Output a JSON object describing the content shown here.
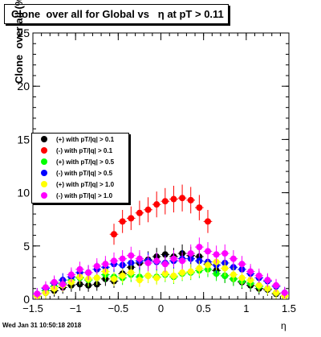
{
  "title": "Clone  over all for Global vs   η at pT > 0.11",
  "footer": "Wed Jan 31 10:50:18 2018",
  "chart_data": {
    "type": "scatter",
    "title": "Clone  over all for Global vs   η at pT > 0.11",
    "xlabel": "η",
    "ylabel": "Clone  over all (%)",
    "xlim": [
      -1.5,
      1.5
    ],
    "ylim": [
      0,
      25
    ],
    "xticks": [
      "−1.5",
      "−1",
      "−0.5",
      "0",
      "0.5",
      "1",
      "1.5"
    ],
    "yticks": [
      "0",
      "5",
      "10",
      "15",
      "20",
      "25"
    ],
    "legend_position": "left",
    "series": [
      {
        "name": "(+) with pT/|q| > 0.1",
        "color": "#000000",
        "points": [
          [
            -1.45,
            0.3
          ],
          [
            -1.35,
            0.6
          ],
          [
            -1.25,
            0.8
          ],
          [
            -1.15,
            1.1
          ],
          [
            -1.05,
            1.3
          ],
          [
            -0.95,
            1.4
          ],
          [
            -0.85,
            1.3
          ],
          [
            -0.75,
            1.4
          ],
          [
            -0.65,
            1.9
          ],
          [
            -0.55,
            1.7
          ],
          [
            -0.45,
            2.4
          ],
          [
            -0.35,
            3.0
          ],
          [
            -0.25,
            3.4
          ],
          [
            -0.15,
            3.7
          ],
          [
            -0.05,
            4.0
          ],
          [
            0.05,
            4.2
          ],
          [
            0.15,
            4.0
          ],
          [
            0.25,
            4.3
          ],
          [
            0.35,
            4.1
          ],
          [
            0.45,
            4.0
          ],
          [
            0.55,
            3.3
          ],
          [
            0.65,
            2.7
          ],
          [
            0.75,
            2.2
          ],
          [
            0.85,
            1.9
          ],
          [
            0.95,
            1.6
          ],
          [
            1.05,
            1.3
          ],
          [
            1.15,
            1.0
          ],
          [
            1.25,
            0.9
          ],
          [
            1.35,
            0.5
          ],
          [
            1.45,
            0.3
          ]
        ]
      },
      {
        "name": "(-) with pT/|q| > 0.1",
        "color": "#ff0000",
        "points": [
          [
            -0.55,
            6.1
          ],
          [
            -0.45,
            7.3
          ],
          [
            -0.35,
            7.6
          ],
          [
            -0.25,
            8.1
          ],
          [
            -0.15,
            8.4
          ],
          [
            -0.05,
            8.9
          ],
          [
            0.05,
            9.2
          ],
          [
            0.15,
            9.4
          ],
          [
            0.25,
            9.5
          ],
          [
            0.35,
            9.3
          ],
          [
            0.45,
            8.6
          ],
          [
            0.55,
            7.3
          ]
        ]
      },
      {
        "name": "(+) with pT/|q| > 0.5",
        "color": "#00ff00",
        "points": [
          [
            -1.45,
            0.3
          ],
          [
            -1.35,
            0.8
          ],
          [
            -1.25,
            1.2
          ],
          [
            -1.15,
            1.5
          ],
          [
            -1.05,
            1.8
          ],
          [
            -0.95,
            2.0
          ],
          [
            -0.85,
            1.8
          ],
          [
            -0.75,
            2.0
          ],
          [
            -0.65,
            2.3
          ],
          [
            -0.55,
            2.1
          ],
          [
            -0.45,
            2.0
          ],
          [
            -0.35,
            2.3
          ],
          [
            -0.25,
            2.1
          ],
          [
            -0.15,
            2.2
          ],
          [
            -0.05,
            2.1
          ],
          [
            0.05,
            2.3
          ],
          [
            0.15,
            2.1
          ],
          [
            0.25,
            2.4
          ],
          [
            0.35,
            2.5
          ],
          [
            0.45,
            2.7
          ],
          [
            0.55,
            2.8
          ],
          [
            0.65,
            2.4
          ],
          [
            0.75,
            2.2
          ],
          [
            0.85,
            1.9
          ],
          [
            0.95,
            1.7
          ],
          [
            1.05,
            1.5
          ],
          [
            1.15,
            1.2
          ],
          [
            1.25,
            1.0
          ],
          [
            1.35,
            0.6
          ],
          [
            1.45,
            0.3
          ]
        ]
      },
      {
        "name": "(-) with pT/|q| > 0.5",
        "color": "#0000ff",
        "points": [
          [
            -1.45,
            0.5
          ],
          [
            -1.35,
            1.0
          ],
          [
            -1.25,
            1.5
          ],
          [
            -1.15,
            1.8
          ],
          [
            -1.05,
            2.1
          ],
          [
            -0.95,
            2.5
          ],
          [
            -0.85,
            2.5
          ],
          [
            -0.75,
            2.8
          ],
          [
            -0.65,
            3.0
          ],
          [
            -0.55,
            3.3
          ],
          [
            -0.45,
            3.2
          ],
          [
            -0.35,
            3.4
          ],
          [
            -0.25,
            3.6
          ],
          [
            -0.15,
            3.6
          ],
          [
            -0.05,
            3.5
          ],
          [
            0.05,
            3.4
          ],
          [
            0.15,
            3.6
          ],
          [
            0.25,
            3.8
          ],
          [
            0.35,
            3.8
          ],
          [
            0.45,
            3.6
          ],
          [
            0.55,
            3.5
          ],
          [
            0.65,
            3.2
          ],
          [
            0.75,
            3.4
          ],
          [
            0.85,
            3.0
          ],
          [
            0.95,
            2.8
          ],
          [
            1.05,
            2.4
          ],
          [
            1.15,
            2.0
          ],
          [
            1.25,
            1.7
          ],
          [
            1.35,
            1.2
          ],
          [
            1.45,
            0.6
          ]
        ]
      },
      {
        "name": "(+) with pT/|q| > 1.0",
        "color": "#ffff00",
        "points": [
          [
            -1.45,
            0.3
          ],
          [
            -1.35,
            0.6
          ],
          [
            -1.25,
            1.0
          ],
          [
            -1.15,
            1.3
          ],
          [
            -1.05,
            1.6
          ],
          [
            -0.95,
            2.1
          ],
          [
            -0.85,
            1.9
          ],
          [
            -0.75,
            2.0
          ],
          [
            -0.65,
            2.6
          ],
          [
            -0.55,
            1.9
          ],
          [
            -0.45,
            2.2
          ],
          [
            -0.35,
            2.5
          ],
          [
            -0.25,
            1.8
          ],
          [
            -0.15,
            2.2
          ],
          [
            -0.05,
            2.0
          ],
          [
            0.05,
            2.4
          ],
          [
            0.15,
            2.2
          ],
          [
            0.25,
            2.5
          ],
          [
            0.35,
            2.6
          ],
          [
            0.45,
            2.9
          ],
          [
            0.55,
            3.2
          ],
          [
            0.65,
            3.5
          ],
          [
            0.75,
            2.9
          ],
          [
            0.85,
            2.3
          ],
          [
            0.95,
            2.0
          ],
          [
            1.05,
            1.8
          ],
          [
            1.15,
            1.3
          ],
          [
            1.25,
            1.0
          ],
          [
            1.35,
            0.6
          ],
          [
            1.45,
            0.3
          ]
        ]
      },
      {
        "name": "(-) with pT/|q| > 1.0",
        "color": "#ff00ff",
        "points": [
          [
            -1.45,
            0.5
          ],
          [
            -1.35,
            1.1
          ],
          [
            -1.25,
            1.6
          ],
          [
            -1.15,
            1.4
          ],
          [
            -1.05,
            2.3
          ],
          [
            -0.95,
            2.8
          ],
          [
            -0.85,
            2.5
          ],
          [
            -0.75,
            3.1
          ],
          [
            -0.65,
            3.3
          ],
          [
            -0.55,
            3.6
          ],
          [
            -0.45,
            3.8
          ],
          [
            -0.35,
            4.1
          ],
          [
            -0.25,
            3.8
          ],
          [
            -0.15,
            3.4
          ],
          [
            -0.05,
            3.6
          ],
          [
            0.05,
            3.3
          ],
          [
            0.15,
            3.8
          ],
          [
            0.25,
            3.6
          ],
          [
            0.35,
            4.3
          ],
          [
            0.45,
            4.9
          ],
          [
            0.55,
            4.5
          ],
          [
            0.65,
            4.2
          ],
          [
            0.75,
            4.3
          ],
          [
            0.85,
            3.8
          ],
          [
            0.95,
            3.3
          ],
          [
            1.05,
            2.6
          ],
          [
            1.15,
            2.2
          ],
          [
            1.25,
            1.8
          ],
          [
            1.35,
            1.3
          ],
          [
            1.45,
            0.6
          ]
        ]
      }
    ]
  }
}
